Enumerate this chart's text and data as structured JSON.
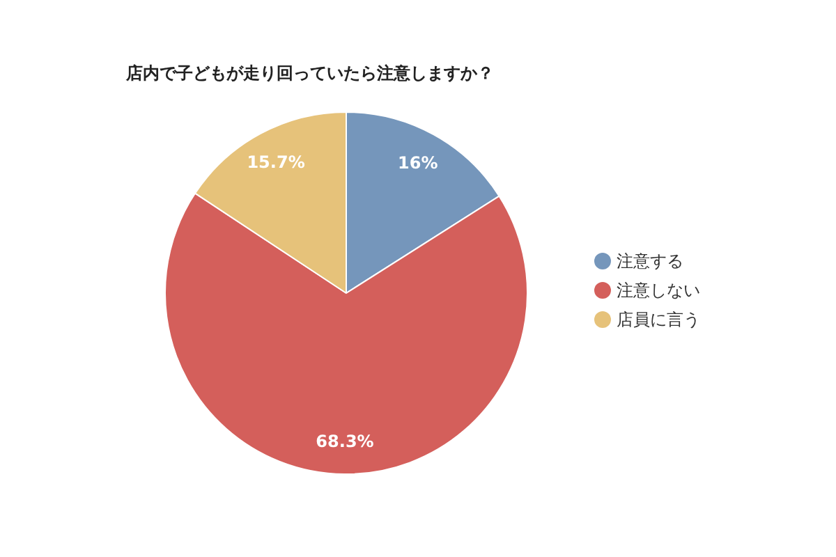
{
  "chart_data": {
    "type": "pie",
    "title": "店内で子どもが走り回っていたら注意しますか？",
    "categories": [
      "注意する",
      "注意しない",
      "店員に言う"
    ],
    "values": [
      16,
      68.3,
      15.7
    ],
    "colors": [
      "#7596bb",
      "#d45f5b",
      "#e6c27a"
    ],
    "value_labels": [
      "16%",
      "68.3%",
      "15.7%"
    ],
    "legend": "right"
  }
}
